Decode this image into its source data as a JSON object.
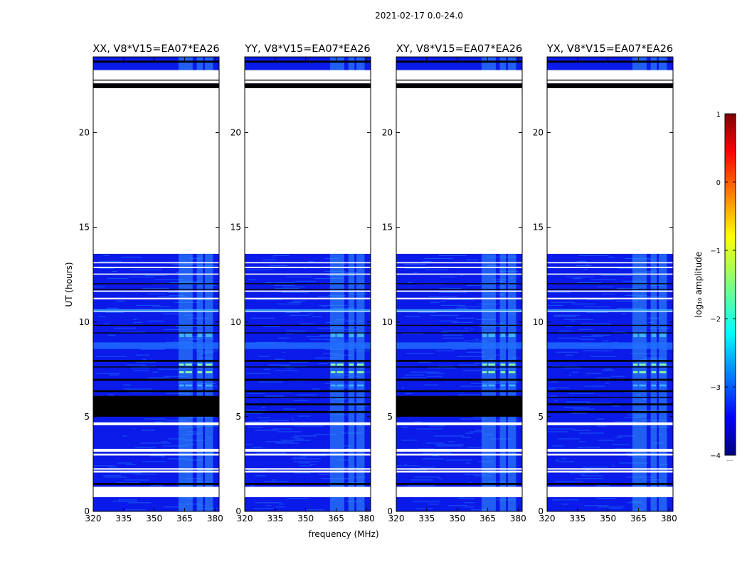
{
  "figure_title": "2021-02-17 0.0-24.0",
  "chart_data": {
    "type": "heatmap",
    "title": "2021-02-17 0.0-24.0",
    "xlabel": "frequency (MHz)",
    "ylabel": "UT (hours)",
    "xlim": [
      320,
      382
    ],
    "ylim": [
      0,
      24
    ],
    "x_ticks": [
      "320",
      "335",
      "350",
      "365",
      "380"
    ],
    "x_tick_values": [
      320,
      335,
      350,
      365,
      380
    ],
    "y_ticks": [
      "0",
      "5",
      "10",
      "15",
      "20"
    ],
    "y_tick_values": [
      0,
      5,
      10,
      15,
      20
    ],
    "panels": [
      {
        "title": "XX, V8*V15=EA07*EA26",
        "polarization": "XX"
      },
      {
        "title": "YY, V8*V15=EA07*EA26",
        "polarization": "YY"
      },
      {
        "title": "XY, V8*V15=EA07*EA26",
        "polarization": "XY"
      },
      {
        "title": "YX, V8*V15=EA07*EA26",
        "polarization": "YX"
      }
    ],
    "data_blocks_ut": [
      [
        0.0,
        13.6
      ],
      [
        22.4,
        22.6
      ],
      [
        23.3,
        24.0
      ]
    ],
    "gap_ut": [
      [
        13.6,
        22.3
      ],
      [
        0.75,
        1.3
      ],
      [
        23.0,
        23.3
      ]
    ],
    "rfi_band_mhz": [
      [
        362,
        365
      ],
      [
        365,
        369
      ],
      [
        371,
        374
      ],
      [
        375,
        379
      ]
    ],
    "colorbar": {
      "label": "log₁₀ amplitude",
      "min": -4,
      "max": 1,
      "ticks": [
        "1",
        "0",
        "−1",
        "−2",
        "−3",
        "−4"
      ],
      "tick_values": [
        1,
        0,
        -1,
        -2,
        -3,
        -4
      ],
      "colormap": "jet",
      "under_label": "....."
    }
  },
  "colors": {
    "low": "#0a1ae8",
    "mid": "#1f6fff",
    "rfi": "#3fb2ff",
    "hot": "#8dffa0",
    "flagged": "#000000",
    "blank": "#ffffff"
  }
}
